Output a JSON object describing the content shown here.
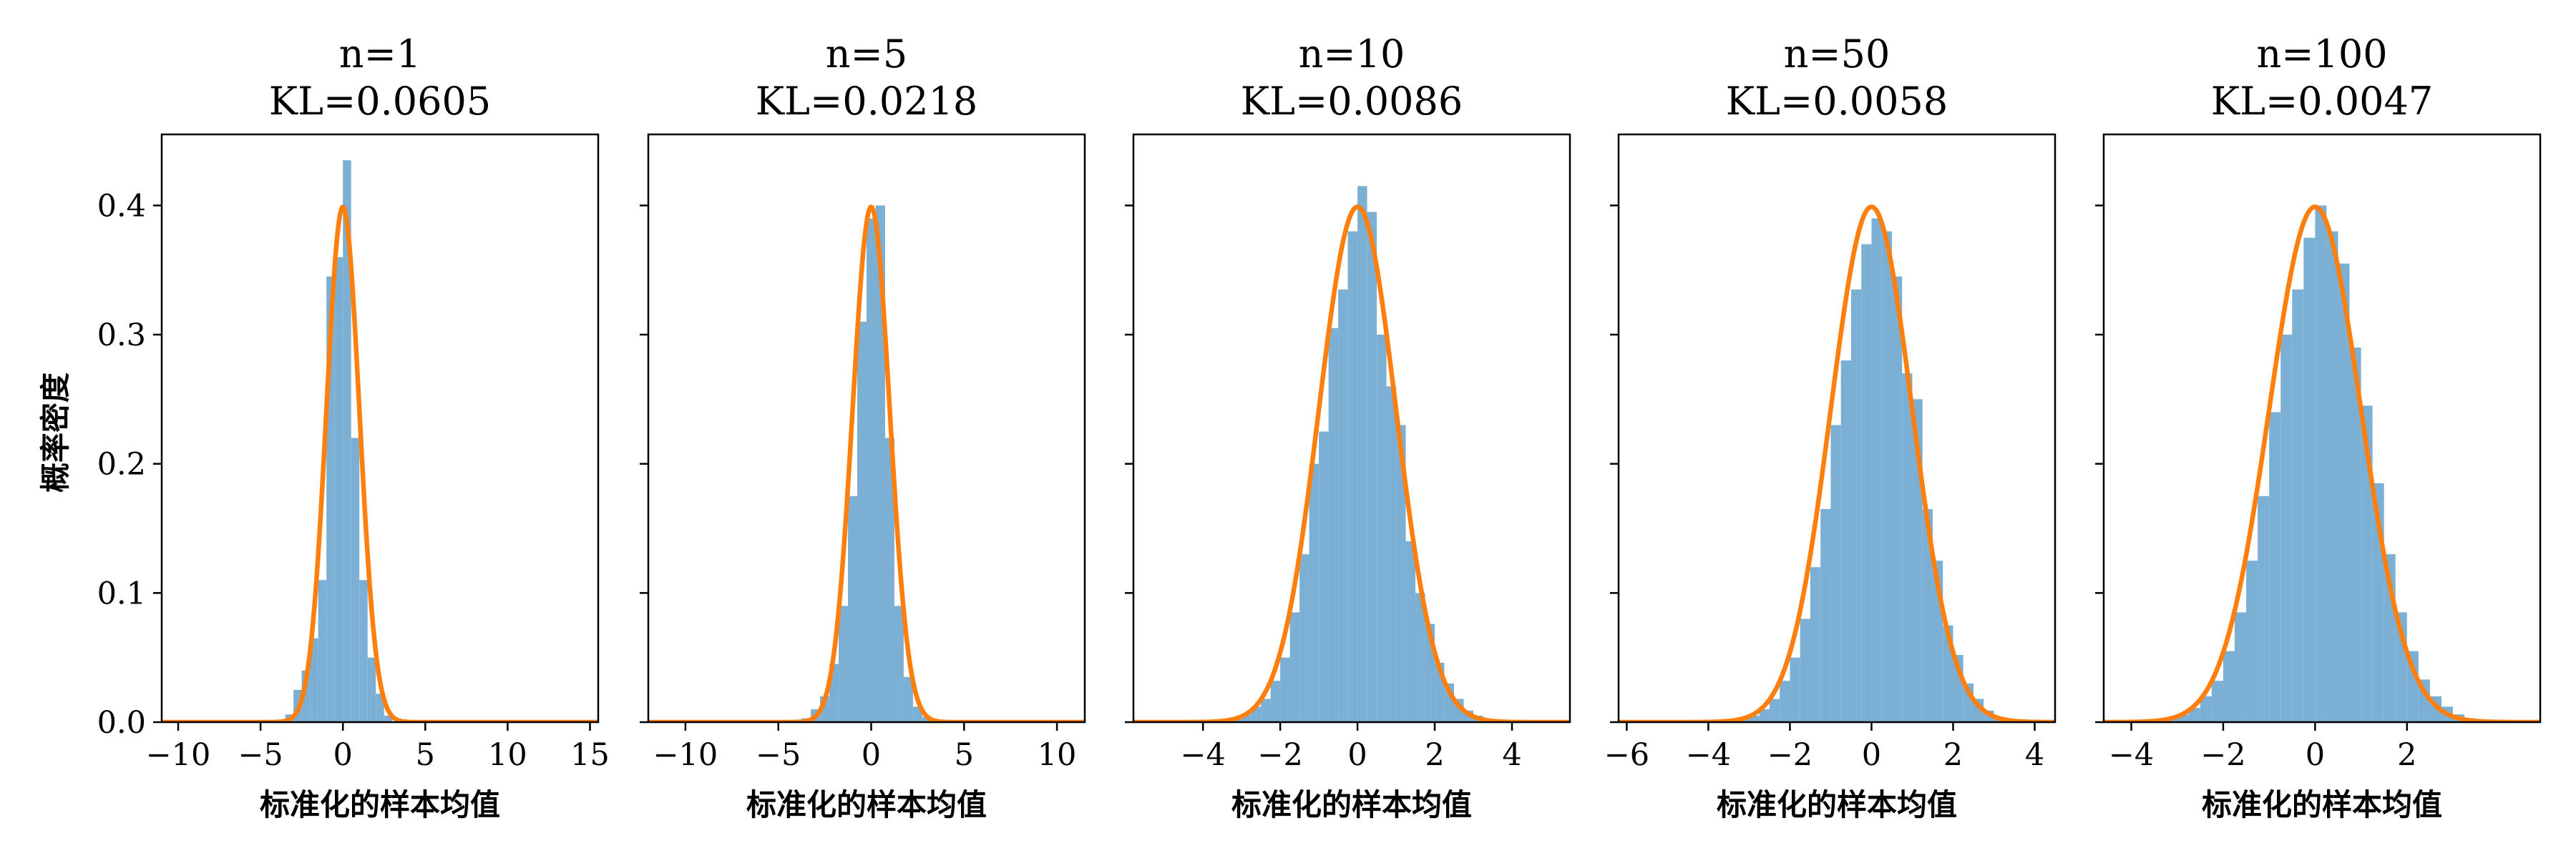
{
  "figure": {
    "ylabel": "概率密度"
  },
  "chart_data": [
    {
      "type": "bar",
      "title": "n=1",
      "subtitle": "KL=0.0605",
      "xlabel": "标准化的样本均值",
      "ylabel": "概率密度",
      "xlim": [
        -11.0,
        15.5
      ],
      "ylim": [
        0,
        0.455
      ],
      "xticks": [
        -10,
        -5,
        0,
        5,
        10,
        15
      ],
      "yticks": [
        0.0,
        0.1,
        0.2,
        0.3,
        0.4
      ],
      "show_ytick_labels": true,
      "histogram": {
        "color": "#7bafd4",
        "bin_edges": [
          -4.0,
          -3.5,
          -3.0,
          -2.5,
          -2.0,
          -1.5,
          -1.0,
          -0.5,
          0.0,
          0.5,
          1.0,
          1.5,
          2.0,
          2.5,
          3.0
        ],
        "density": [
          0.002,
          0.006,
          0.025,
          0.04,
          0.065,
          0.11,
          0.345,
          0.36,
          0.435,
          0.22,
          0.11,
          0.05,
          0.022,
          0.005
        ]
      },
      "curve": {
        "name": "",
        "distribution": "normal pdf",
        "mean": 0,
        "std": 1,
        "color": "#ff7f0e"
      },
      "grid": false,
      "legend": "none"
    },
    {
      "type": "bar",
      "title": "n=5",
      "subtitle": "KL=0.0218",
      "xlabel": "标准化的样本均值",
      "ylabel": "",
      "xlim": [
        -12.0,
        11.5
      ],
      "ylim": [
        0,
        0.455
      ],
      "xticks": [
        -10,
        -5,
        0,
        5,
        10
      ],
      "yticks": [
        0.0,
        0.1,
        0.2,
        0.3,
        0.4
      ],
      "show_ytick_labels": false,
      "histogram": {
        "color": "#7bafd4",
        "bin_edges": [
          -3.75,
          -3.25,
          -2.75,
          -2.25,
          -1.75,
          -1.25,
          -0.75,
          -0.25,
          0.25,
          0.75,
          1.25,
          1.75,
          2.25,
          2.75,
          3.25
        ],
        "density": [
          0.003,
          0.01,
          0.02,
          0.045,
          0.09,
          0.175,
          0.31,
          0.39,
          0.4,
          0.22,
          0.09,
          0.035,
          0.012,
          0.004
        ]
      },
      "curve": {
        "name": "",
        "distribution": "normal pdf",
        "mean": 0,
        "std": 1,
        "color": "#ff7f0e"
      },
      "grid": false,
      "legend": "none"
    },
    {
      "type": "bar",
      "title": "n=10",
      "subtitle": "KL=0.0086",
      "xlabel": "标准化的样本均值",
      "ylabel": "",
      "xlim": [
        -5.8,
        5.5
      ],
      "ylim": [
        0,
        0.455
      ],
      "xticks": [
        -4,
        -2,
        0,
        2,
        4
      ],
      "yticks": [
        0.0,
        0.1,
        0.2,
        0.3,
        0.4
      ],
      "show_ytick_labels": false,
      "histogram": {
        "color": "#7bafd4",
        "bin_edges": [
          -3.25,
          -3.0,
          -2.75,
          -2.5,
          -2.25,
          -2.0,
          -1.75,
          -1.5,
          -1.25,
          -1.0,
          -0.75,
          -0.5,
          -0.25,
          0.0,
          0.25,
          0.5,
          0.75,
          1.0,
          1.25,
          1.5,
          1.75,
          2.0,
          2.25,
          2.5,
          2.75,
          3.0,
          3.25
        ],
        "density": [
          0.004,
          0.006,
          0.012,
          0.018,
          0.032,
          0.05,
          0.085,
          0.13,
          0.2,
          0.225,
          0.305,
          0.335,
          0.38,
          0.415,
          0.395,
          0.3,
          0.26,
          0.23,
          0.14,
          0.1,
          0.076,
          0.046,
          0.03,
          0.018,
          0.009,
          0.005
        ]
      },
      "curve": {
        "name": "",
        "distribution": "normal pdf",
        "mean": 0,
        "std": 1,
        "color": "#ff7f0e"
      },
      "grid": false,
      "legend": "none"
    },
    {
      "type": "bar",
      "title": "n=50",
      "subtitle": "KL=0.0058",
      "xlabel": "标准化的样本均值",
      "ylabel": "",
      "xlim": [
        -6.2,
        4.5
      ],
      "ylim": [
        0,
        0.455
      ],
      "xticks": [
        -6,
        -4,
        -2,
        0,
        2,
        4
      ],
      "yticks": [
        0.0,
        0.1,
        0.2,
        0.3,
        0.4
      ],
      "show_ytick_labels": false,
      "histogram": {
        "color": "#7bafd4",
        "bin_edges": [
          -3.25,
          -3.0,
          -2.75,
          -2.5,
          -2.25,
          -2.0,
          -1.75,
          -1.5,
          -1.25,
          -1.0,
          -0.75,
          -0.5,
          -0.25,
          0.0,
          0.25,
          0.5,
          0.75,
          1.0,
          1.25,
          1.5,
          1.75,
          2.0,
          2.25,
          2.5,
          2.75,
          3.0,
          3.25
        ],
        "density": [
          0.003,
          0.005,
          0.01,
          0.018,
          0.032,
          0.05,
          0.08,
          0.12,
          0.165,
          0.23,
          0.28,
          0.335,
          0.37,
          0.39,
          0.38,
          0.345,
          0.27,
          0.25,
          0.165,
          0.125,
          0.075,
          0.052,
          0.03,
          0.018,
          0.009,
          0.004
        ]
      },
      "curve": {
        "name": "",
        "distribution": "normal pdf",
        "mean": 0,
        "std": 1,
        "color": "#ff7f0e"
      },
      "grid": false,
      "legend": "none"
    },
    {
      "type": "bar",
      "title": "n=100",
      "subtitle": "KL=0.0047",
      "xlabel": "标准化的样本均值",
      "ylabel": "",
      "xlim": [
        -4.6,
        4.9
      ],
      "ylim": [
        0,
        0.455
      ],
      "xticks": [
        -4,
        -2,
        0,
        2
      ],
      "yticks": [
        0.0,
        0.1,
        0.2,
        0.3,
        0.4
      ],
      "show_ytick_labels": false,
      "histogram": {
        "color": "#7bafd4",
        "bin_edges": [
          -3.5,
          -3.25,
          -3.0,
          -2.75,
          -2.5,
          -2.25,
          -2.0,
          -1.75,
          -1.5,
          -1.25,
          -1.0,
          -0.75,
          -0.5,
          -0.25,
          0.0,
          0.25,
          0.5,
          0.75,
          1.0,
          1.25,
          1.5,
          1.75,
          2.0,
          2.25,
          2.5,
          2.75,
          3.0,
          3.25,
          3.5
        ],
        "density": [
          0.002,
          0.003,
          0.006,
          0.011,
          0.02,
          0.032,
          0.055,
          0.085,
          0.125,
          0.175,
          0.24,
          0.3,
          0.335,
          0.375,
          0.4,
          0.38,
          0.355,
          0.29,
          0.245,
          0.185,
          0.13,
          0.085,
          0.055,
          0.033,
          0.02,
          0.012,
          0.006,
          0.003
        ]
      },
      "curve": {
        "name": "",
        "distribution": "normal pdf",
        "mean": 0,
        "std": 1,
        "color": "#ff7f0e"
      },
      "grid": false,
      "legend": "none"
    }
  ]
}
